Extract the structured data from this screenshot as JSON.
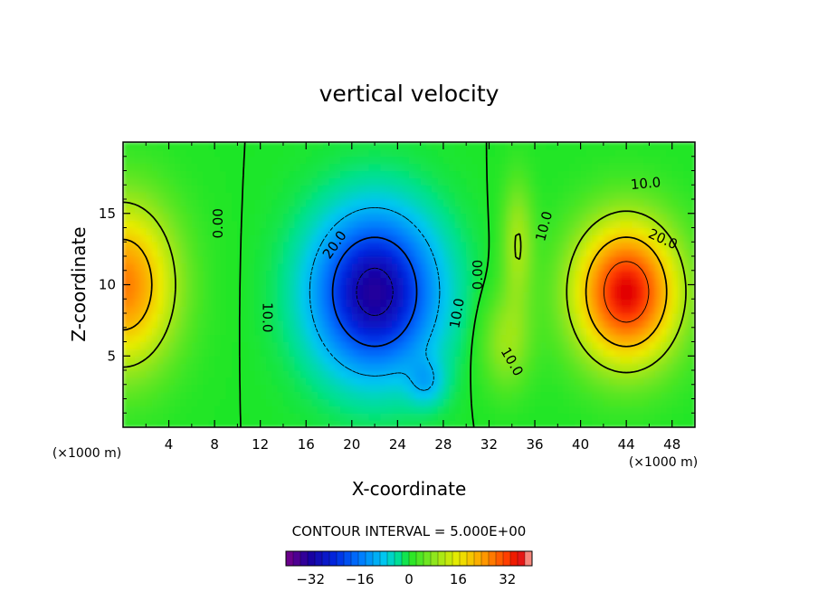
{
  "chart_data": {
    "type": "heatmap",
    "title": "vertical velocity",
    "xlabel": "X-coordinate",
    "ylabel": "Z-coordinate",
    "x_units": "(×1000 m)",
    "z_units": "(×1000 m)",
    "xlim": [
      0,
      50
    ],
    "ylim": [
      0,
      20
    ],
    "x_ticks": [
      4,
      8,
      12,
      16,
      20,
      24,
      28,
      32,
      36,
      40,
      44,
      48
    ],
    "x_tick_labels": [
      "4",
      "8",
      "12",
      "16",
      "20",
      "24",
      "28",
      "32",
      "36",
      "40",
      "44",
      "48"
    ],
    "y_ticks": [
      5,
      10,
      15
    ],
    "y_tick_labels": [
      "5",
      "10",
      "15"
    ],
    "contour_interval": "CONTOUR INTERVAL = 5.000E+00",
    "colorbar": {
      "min": -40,
      "max": 40,
      "ticks": [
        -32,
        -16,
        0,
        16,
        32
      ],
      "tick_labels": [
        "−32",
        "−16",
        "0",
        "16",
        "32"
      ]
    },
    "features": [
      {
        "name": "left-updraft",
        "x": 0,
        "z": 10,
        "peak": 27
      },
      {
        "name": "downdraft",
        "x": 22,
        "z": 9.5,
        "peak": -33
      },
      {
        "name": "right-updraft",
        "x": 44,
        "z": 9.5,
        "peak": 36
      }
    ],
    "contour_labels": [
      {
        "text": "0.00",
        "x": 8.3,
        "z": 14.3,
        "angle": -90
      },
      {
        "text": "20.0",
        "x": 18.5,
        "z": 12.8,
        "angle": -55
      },
      {
        "text": "10.0",
        "x": 12.6,
        "z": 7.7,
        "angle": 90
      },
      {
        "text": "10.0",
        "x": 29.2,
        "z": 8.0,
        "angle": -80
      },
      {
        "text": "0.00",
        "x": 31.0,
        "z": 10.7,
        "angle": -90
      },
      {
        "text": "10.0",
        "x": 36.8,
        "z": 14.1,
        "angle": -75
      },
      {
        "text": "10.0",
        "x": 45.7,
        "z": 17.1,
        "angle": -5
      },
      {
        "text": "20.0",
        "x": 47.2,
        "z": 13.2,
        "angle": 25
      },
      {
        "text": "10.0",
        "x": 34.0,
        "z": 4.6,
        "angle": 60
      }
    ]
  }
}
